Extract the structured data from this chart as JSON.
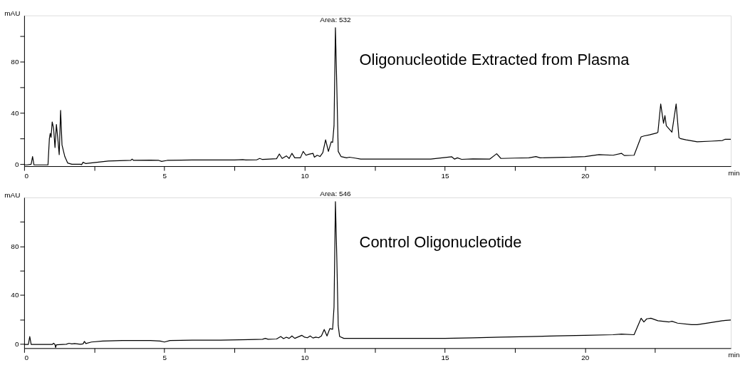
{
  "chart_data": [
    {
      "type": "line",
      "xlabel": "min",
      "ylabel": "mAU",
      "xlim": [
        0,
        25.2
      ],
      "ylim": [
        -1.5,
        116
      ],
      "xticks": [
        0,
        {
          "value": 2.5,
          "label": null
        },
        5,
        {
          "value": 7.5,
          "label": null
        },
        10,
        {
          "value": 12.5,
          "label": null
        },
        15,
        {
          "value": 17.5,
          "label": null
        },
        20,
        {
          "value": 22.5,
          "label": null
        }
      ],
      "yticks": [
        0,
        {
          "value": 20,
          "label": null
        },
        40,
        {
          "value": 60,
          "label": null
        },
        80,
        {
          "value": 100,
          "label": null
        }
      ],
      "annotations": [
        {
          "text": "Area: 532",
          "x": 11.1,
          "y": 106.5
        },
        "Oligonucleotide Extracted from Plasma"
      ],
      "series": [
        {
          "color": "#000000",
          "x": [
            0,
            0.1,
            0.25,
            0.3,
            0.35,
            0.85,
            0.9,
            0.93,
            0.96,
            1.0,
            1.05,
            1.1,
            1.15,
            1.2,
            1.25,
            1.3,
            1.35,
            1.45,
            1.55,
            1.7,
            2.0,
            2.05,
            2.1,
            2.2,
            2.6,
            3.0,
            3.8,
            3.85,
            3.9,
            4.5,
            4.8,
            4.9,
            5.1,
            6,
            7.5,
            7.8,
            7.9,
            8.3,
            8.4,
            8.5,
            9.0,
            9.1,
            9.2,
            9.35,
            9.45,
            9.55,
            9.65,
            9.85,
            9.95,
            10.05,
            10.15,
            10.3,
            10.35,
            10.45,
            10.55,
            10.65,
            10.75,
            10.85,
            10.95,
            11.0,
            11.05,
            11.1,
            11.15,
            11.2,
            11.3,
            11.5,
            11.6,
            11.8,
            12,
            14.5,
            15.25,
            15.35,
            15.45,
            15.6,
            16.0,
            16.6,
            16.85,
            17.0,
            17.5,
            18.0,
            18.25,
            18.4,
            19.5,
            20.0,
            20.5,
            21.0,
            21.3,
            21.4,
            21.75,
            22.0,
            22.1,
            22.3,
            22.55,
            22.6,
            22.7,
            22.8,
            22.85,
            22.9,
            23.1,
            23.25,
            23.35,
            23.4,
            23.6,
            24.0,
            24.5,
            24.9,
            25.0,
            25.2
          ],
          "values": [
            -0.5,
            -0.5,
            0,
            6,
            -0.5,
            -0.5,
            20,
            24,
            21,
            33,
            28,
            13,
            31,
            20,
            7.5,
            42,
            15,
            6,
            1,
            0,
            0,
            -0.3,
            1.5,
            0.5,
            1.5,
            2.5,
            3,
            4,
            3,
            3.2,
            3,
            2.2,
            3,
            3.3,
            3.3,
            3.6,
            3.3,
            3.5,
            4.5,
            3.7,
            4.3,
            8,
            4.5,
            6.5,
            4.5,
            8.5,
            5,
            5,
            10,
            7,
            7.8,
            8.5,
            5.5,
            7,
            6,
            9,
            19,
            10,
            17.5,
            17,
            30,
            106.5,
            60,
            10,
            6,
            5,
            5.5,
            4.8,
            4,
            4,
            5.8,
            4,
            5,
            3.8,
            4.2,
            4,
            8.2,
            4.5,
            4.8,
            5,
            6,
            5,
            5.5,
            6,
            7.5,
            7,
            8.5,
            6.8,
            7,
            21.3,
            22,
            22.9,
            24.3,
            25,
            47,
            32,
            38,
            30,
            25,
            47,
            20.8,
            20,
            19,
            17.5,
            18,
            18.5,
            19.5,
            19.5
          ]
        }
      ]
    },
    {
      "type": "line",
      "xlabel": "min",
      "ylabel": "mAU",
      "xlim": [
        0,
        25.2
      ],
      "ylim": [
        -3.5,
        120
      ],
      "xticks": [
        0,
        {
          "value": 2.5,
          "label": null
        },
        5,
        {
          "value": 7.5,
          "label": null
        },
        10,
        {
          "value": 12.5,
          "label": null
        },
        15,
        {
          "value": 17.5,
          "label": null
        },
        20,
        {
          "value": 22.5,
          "label": null
        }
      ],
      "yticks": [
        0,
        {
          "value": 20,
          "label": null
        },
        40,
        {
          "value": 60,
          "label": null
        },
        80,
        {
          "value": 100,
          "label": null
        }
      ],
      "annotations": [
        {
          "text": "Area: 546",
          "x": 11.1,
          "y": 116.6
        },
        "Control Oligonucleotide"
      ],
      "series": [
        {
          "color": "#000000",
          "x": [
            0,
            0.15,
            0.2,
            0.25,
            1.0,
            1.05,
            1.1,
            1.12,
            1.15,
            1.5,
            1.6,
            1.7,
            1.8,
            2.0,
            2.1,
            2.15,
            2.2,
            2.4,
            2.8,
            3.5,
            4.5,
            4.85,
            5.0,
            5.2,
            6,
            7,
            8,
            8.5,
            8.6,
            8.7,
            9.0,
            9.15,
            9.25,
            9.35,
            9.45,
            9.55,
            9.65,
            9.9,
            10.0,
            10.1,
            10.2,
            10.3,
            10.4,
            10.5,
            10.6,
            10.7,
            10.8,
            10.9,
            11.0,
            11.05,
            11.1,
            11.15,
            11.2,
            11.25,
            11.4,
            12,
            15,
            16,
            17,
            18,
            19,
            20,
            21,
            21.3,
            21.75,
            22.0,
            22.1,
            22.2,
            22.35,
            22.6,
            23.0,
            23.1,
            23.3,
            23.8,
            24.0,
            24.5,
            24.9,
            25.2
          ],
          "values": [
            -0.5,
            -0.5,
            6,
            -0.5,
            -0.5,
            0.5,
            -0.5,
            -3,
            -0.8,
            -0.3,
            0.5,
            0,
            0.3,
            -0.3,
            0,
            2,
            0.3,
            1.5,
            2.3,
            2.7,
            2.8,
            2.3,
            1.5,
            2.8,
            3,
            3,
            3.5,
            3.8,
            4.5,
            3.8,
            4,
            6,
            4.3,
            5.5,
            4.5,
            6.5,
            4.5,
            7,
            5.5,
            5,
            6.5,
            4.8,
            5.5,
            5,
            6.5,
            11.8,
            6.5,
            12.5,
            12,
            30,
            116.6,
            70,
            15,
            6,
            4.5,
            4.5,
            4.5,
            5,
            5.5,
            6,
            6.5,
            7,
            7.5,
            8,
            7.5,
            21,
            18,
            20.5,
            21,
            19,
            18,
            18.5,
            17,
            15.8,
            15.8,
            17.5,
            19,
            19.5
          ]
        }
      ]
    }
  ]
}
